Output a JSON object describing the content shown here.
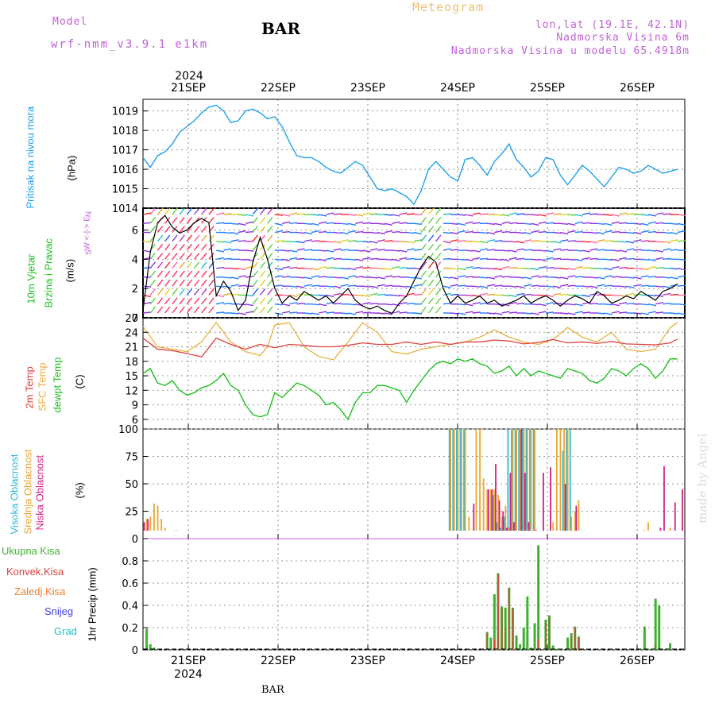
{
  "header": {
    "model_label": "Model",
    "model_name": "wrf-nmm_v3.9.1 e1km",
    "station": "BAR",
    "title": "Meteogram",
    "lonlat": "lon,lat (19.1E, 42.1N)",
    "elevation": "Nadmorska Visina 6m",
    "model_elevation": "Nadmorska Visina u modelu 65.4918m"
  },
  "footer": {
    "station": "BAR",
    "watermark": "made by Angel"
  },
  "colors": {
    "pressure": "#20a0e8",
    "t2m": "#e04040",
    "sfc": "#e8b040",
    "dewpt": "#20c020",
    "high_cloud": "#30b8d8",
    "mid_cloud": "#e8a830",
    "low_cloud": "#d02080",
    "total_precip": "#40b030",
    "conv_precip": "#e04040",
    "freezing": "#f08030",
    "snow": "#4040e0",
    "hail": "#20c0c0",
    "purple": "#c060d8"
  },
  "chart_data": [
    {
      "type": "line",
      "title": "",
      "ylabel": "(hPa)",
      "side_label": "Pritisak na nivou mora",
      "ylim": [
        1014,
        1019.6
      ],
      "yticks": [
        "1014",
        "1015",
        "1016",
        "1017",
        "1018",
        "1019"
      ],
      "top_year": "2024",
      "x_labels": [
        "21SEP",
        "22SEP",
        "23SEP",
        "24SEP",
        "25SEP",
        "26SEP"
      ],
      "grid": true,
      "series": [
        {
          "x": [
            0,
            2,
            4,
            6,
            8,
            10,
            12,
            14,
            16,
            18,
            20,
            22,
            24,
            26,
            28,
            30,
            32,
            34,
            36,
            38,
            40,
            42,
            44,
            46,
            48,
            50,
            52,
            54,
            56,
            58,
            60,
            62,
            64,
            66,
            68,
            70,
            72,
            74,
            76,
            78,
            80,
            82,
            84,
            86,
            88,
            90,
            92,
            94,
            96,
            98,
            100,
            102,
            104,
            106,
            108,
            110,
            112,
            114,
            116,
            118,
            120,
            122,
            124,
            126,
            128,
            130,
            132,
            134,
            136,
            138,
            140,
            142,
            144,
            146
          ],
          "values": [
            1016.6,
            1016.1,
            1016.7,
            1016.9,
            1017.3,
            1017.9,
            1018.2,
            1018.5,
            1018.9,
            1019.2,
            1019.3,
            1019.0,
            1018.4,
            1018.5,
            1019.0,
            1019.1,
            1018.9,
            1018.6,
            1018.7,
            1018.2,
            1017.4,
            1016.7,
            1016.6,
            1016.6,
            1016.4,
            1016.1,
            1015.9,
            1015.8,
            1016.1,
            1016.4,
            1016.2,
            1015.6,
            1015.0,
            1014.9,
            1015.0,
            1014.8,
            1014.6,
            1014.2,
            1014.9,
            1016.0,
            1016.4,
            1016.0,
            1015.6,
            1015.4,
            1016.5,
            1016.6,
            1016.2,
            1015.7,
            1016.4,
            1016.8,
            1017.3,
            1016.5,
            1016.1,
            1015.6,
            1015.9,
            1016.6,
            1016.5,
            1015.7,
            1015.2,
            1015.7,
            1016.2,
            1015.9,
            1015.5,
            1015.1,
            1015.6,
            1016.1,
            1016.0,
            1015.8,
            1015.9,
            1016.2,
            1016.0,
            1015.8,
            1015.9,
            1016.0
          ],
          "name": ""
        }
      ]
    },
    {
      "type": "line",
      "title": "",
      "ylabel": "(m/s)",
      "side_label_1": "10m Vjetar",
      "side_label_2": "Brzina i Pravac",
      "compass_1": "N",
      "compass_2": "W <-|-> E",
      "compass_3": "S",
      "ylim": [
        0,
        7.5
      ],
      "yticks": [
        "0",
        "2",
        "4",
        "6"
      ],
      "grid": true,
      "series": [
        {
          "name": "",
          "x": [
            0,
            2,
            4,
            6,
            8,
            10,
            12,
            14,
            16,
            18,
            20,
            22,
            24,
            26,
            28,
            30,
            32,
            34,
            36,
            38,
            40,
            42,
            44,
            46,
            48,
            50,
            52,
            54,
            56,
            58,
            60,
            62,
            64,
            66,
            68,
            70,
            72,
            74,
            76,
            78,
            80,
            82,
            84,
            86,
            88,
            90,
            92,
            94,
            96,
            98,
            100,
            102,
            104,
            106,
            108,
            110,
            112,
            114,
            116,
            118,
            120,
            122,
            124,
            126,
            128,
            130,
            132,
            134,
            136,
            138,
            140,
            142,
            144,
            146
          ],
          "values": [
            0.5,
            4.5,
            6.5,
            7.0,
            6.2,
            5.8,
            6.0,
            6.5,
            6.8,
            6.5,
            1.5,
            2.5,
            1.8,
            0.5,
            1.2,
            3.8,
            5.5,
            4.0,
            2.0,
            1.0,
            1.5,
            1.2,
            1.8,
            1.5,
            1.2,
            1.5,
            1.0,
            1.5,
            2.0,
            1.2,
            0.8,
            0.6,
            0.8,
            0.5,
            0.3,
            1.0,
            1.5,
            2.5,
            3.5,
            4.2,
            3.8,
            2.0,
            1.0,
            1.5,
            1.0,
            1.2,
            1.5,
            1.0,
            1.2,
            0.8,
            1.0,
            1.2,
            1.5,
            1.0,
            1.3,
            1.5,
            1.2,
            0.8,
            1.2,
            1.5,
            1.3,
            1.0,
            1.8,
            1.5,
            1.0,
            1.2,
            1.5,
            1.3,
            1.8,
            1.5,
            1.2,
            1.8,
            2.0,
            2.3
          ]
        }
      ]
    },
    {
      "type": "line",
      "title": "",
      "ylabel": "(C)",
      "side_label_1": "2m Temp",
      "side_label_2": "SFC Temp",
      "side_label_3": "dewpt Temp",
      "ylim": [
        4,
        27
      ],
      "yticks": [
        "6",
        "9",
        "12",
        "15",
        "18",
        "21",
        "24",
        "27"
      ],
      "grid": true,
      "series": [
        {
          "name": "2m Temp",
          "x": [
            0,
            4,
            8,
            12,
            16,
            20,
            24,
            28,
            32,
            36,
            40,
            44,
            48,
            52,
            56,
            60,
            64,
            68,
            72,
            76,
            80,
            84,
            88,
            92,
            96,
            100,
            104,
            108,
            112,
            116,
            120,
            124,
            128,
            132,
            136,
            140,
            144,
            146
          ],
          "values": [
            22.8,
            20.5,
            20.2,
            19.6,
            18.9,
            22.8,
            21.5,
            20.5,
            21.5,
            20.8,
            21.5,
            21.3,
            21.0,
            21.0,
            21.3,
            21.8,
            21.5,
            21.5,
            22.0,
            21.5,
            22.0,
            21.5,
            22.0,
            22.0,
            22.4,
            22.2,
            21.6,
            21.9,
            22.5,
            21.8,
            22.0,
            21.7,
            22.1,
            21.6,
            21.5,
            21.4,
            21.8,
            22.6
          ]
        },
        {
          "name": "SFC Temp",
          "x": [
            0,
            4,
            8,
            12,
            16,
            18,
            20,
            24,
            28,
            32,
            34,
            36,
            40,
            44,
            48,
            52,
            56,
            60,
            64,
            68,
            72,
            76,
            80,
            84,
            88,
            92,
            96,
            100,
            104,
            108,
            112,
            116,
            120,
            124,
            128,
            132,
            136,
            140,
            144,
            146
          ],
          "values": [
            25.2,
            21.0,
            20.5,
            20.0,
            22.0,
            24.0,
            26.0,
            22.0,
            20.0,
            19.2,
            21.0,
            25.5,
            26.0,
            21.0,
            19.0,
            18.3,
            22.0,
            26.0,
            24.0,
            20.0,
            19.5,
            20.5,
            21.0,
            21.5,
            22.0,
            23.0,
            24.5,
            23.0,
            22.0,
            21.5,
            22.5,
            25.0,
            23.0,
            22.0,
            24.0,
            20.5,
            20.0,
            20.5,
            25.0,
            26.0
          ]
        },
        {
          "name": "dewpt Temp",
          "x": [
            0,
            2,
            4,
            6,
            8,
            10,
            12,
            14,
            16,
            18,
            20,
            22,
            24,
            26,
            28,
            30,
            32,
            34,
            36,
            38,
            40,
            42,
            44,
            46,
            48,
            50,
            52,
            54,
            56,
            58,
            60,
            62,
            64,
            66,
            68,
            70,
            72,
            74,
            76,
            78,
            80,
            82,
            84,
            86,
            88,
            90,
            92,
            94,
            96,
            98,
            100,
            102,
            104,
            106,
            108,
            110,
            112,
            114,
            116,
            118,
            120,
            122,
            124,
            126,
            128,
            130,
            132,
            134,
            136,
            138,
            140,
            142,
            144,
            146
          ],
          "values": [
            15.5,
            16.5,
            13.5,
            13.0,
            14.0,
            12.0,
            11.0,
            11.5,
            12.5,
            13.0,
            14.0,
            15.5,
            13.0,
            12.0,
            9.0,
            7.0,
            6.5,
            7.0,
            11.5,
            10.5,
            12.0,
            13.5,
            13.0,
            12.0,
            11.0,
            9.0,
            9.5,
            8.0,
            6.0,
            9.5,
            11.5,
            11.5,
            13.0,
            13.0,
            12.5,
            12.0,
            9.5,
            12.0,
            14.0,
            16.0,
            17.5,
            18.0,
            17.5,
            18.5,
            18.0,
            18.5,
            17.5,
            17.0,
            15.5,
            16.0,
            17.0,
            15.0,
            16.5,
            15.0,
            16.0,
            15.5,
            15.0,
            14.5,
            16.5,
            16.0,
            15.5,
            14.0,
            13.5,
            14.5,
            16.5,
            16.0,
            15.0,
            16.5,
            17.5,
            16.5,
            14.5,
            16.0,
            18.5,
            18.5
          ]
        }
      ]
    },
    {
      "type": "bar",
      "title": "",
      "ylabel": "(%)",
      "side_label_1": "Visoka Oblacnost",
      "side_label_2": "Srednja Oblacnost",
      "side_label_3": "Niska Oblacnost",
      "ylim": [
        0,
        100
      ],
      "yticks": [
        "0",
        "25",
        "50",
        "75",
        "100"
      ],
      "grid": true,
      "series": [
        {
          "name": "Visoka Oblacnost",
          "x": [
            84,
            85,
            86,
            87,
            88,
            96,
            97,
            98,
            99,
            100,
            101,
            102,
            103,
            104,
            105,
            106,
            107,
            115,
            116,
            117
          ],
          "values": [
            100,
            100,
            100,
            100,
            100,
            40,
            15,
            10,
            20,
            100,
            100,
            100,
            100,
            100,
            100,
            100,
            100,
            80,
            100,
            100
          ]
        },
        {
          "name": "Srednja Oblacnost",
          "x": [
            1,
            2,
            3,
            4,
            5,
            6,
            9,
            84,
            85,
            86,
            87,
            88,
            89,
            91,
            92,
            93,
            94,
            95,
            96,
            97,
            98,
            99,
            100,
            101,
            102,
            103,
            104,
            105,
            106,
            107,
            112,
            113,
            114,
            115,
            116,
            117,
            118,
            119,
            137,
            138,
            144
          ],
          "values": [
            18,
            20,
            32,
            30,
            18,
            10,
            8,
            100,
            100,
            100,
            100,
            100,
            20,
            100,
            100,
            55,
            45,
            45,
            45,
            40,
            20,
            30,
            10,
            100,
            100,
            100,
            100,
            100,
            100,
            100,
            15,
            100,
            100,
            100,
            100,
            20,
            25,
            35,
            8,
            15,
            10
          ]
        },
        {
          "name": "Niska Oblacnost",
          "x": [
            0,
            1,
            90,
            94,
            95,
            96,
            97,
            98,
            99,
            100,
            101,
            103,
            104,
            105,
            107,
            109,
            111,
            115,
            118,
            141,
            142,
            145,
            147
          ],
          "values": [
            15,
            18,
            32,
            45,
            45,
            68,
            35,
            25,
            10,
            60,
            15,
            100,
            60,
            15,
            8,
            60,
            65,
            50,
            30,
            10,
            66,
            33,
            45
          ]
        }
      ]
    },
    {
      "type": "bar",
      "title": "",
      "ylabel": "1hr Precip (mm)",
      "side_labels": [
        "Ukupna Kisa",
        "Konvek.Kisa",
        "Zaledj.Kisa",
        "Snijeg",
        "Grad"
      ],
      "ylim": [
        0,
        1.0
      ],
      "yticks": [
        "0",
        "0.2",
        "0.4",
        "0.6",
        "0.8"
      ],
      "bottom_year": "2024",
      "x_labels": [
        "21SEP",
        "22SEP",
        "23SEP",
        "24SEP",
        "25SEP",
        "26SEP"
      ],
      "grid": true,
      "series": [
        {
          "name": "Ukupna Kisa",
          "x": [
            1,
            2,
            3,
            94,
            95,
            96,
            97,
            98,
            99,
            100,
            101,
            102,
            103,
            104,
            105,
            106,
            107,
            108,
            110,
            111,
            112,
            113,
            114,
            116,
            117,
            118,
            119,
            120,
            136,
            137,
            138,
            139,
            140,
            141,
            142,
            143,
            144
          ],
          "values": [
            0.19,
            0.05,
            0.02,
            0.16,
            0.11,
            0.5,
            0.69,
            0.39,
            0.38,
            0.56,
            0.38,
            0.13,
            0.05,
            0.2,
            0.48,
            0.02,
            0.24,
            0.94,
            0.27,
            0.31,
            0.04,
            0.01,
            0.01,
            0.11,
            0.15,
            0.21,
            0.12,
            0.01,
            0.01,
            0.21,
            0.01,
            0.01,
            0.46,
            0.4,
            0.01,
            0.01,
            0.06
          ]
        },
        {
          "name": "Konvek.Kisa",
          "x": [
            94,
            96,
            97,
            98,
            99,
            100,
            101,
            108,
            110,
            111,
            117,
            118,
            119,
            140
          ],
          "values": [
            0.16,
            0.1,
            0.68,
            0.38,
            0.2,
            0.55,
            0.37,
            0.1,
            0.25,
            0.3,
            0.12,
            0.2,
            0.11,
            0.05
          ]
        }
      ]
    }
  ]
}
